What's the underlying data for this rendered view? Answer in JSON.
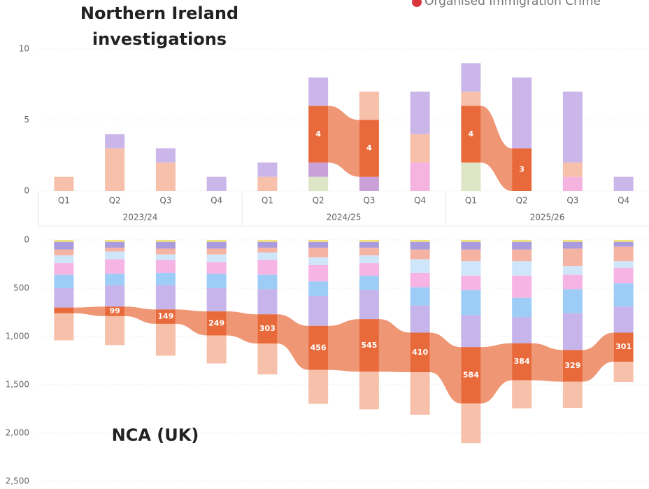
{
  "chart_data": [
    {
      "type": "ribbon",
      "title": "Northern Ireland investigations",
      "categories": [
        "Q1",
        "Q2",
        "Q3",
        "Q4",
        "Q1",
        "Q2",
        "Q3",
        "Q4",
        "Q1",
        "Q2",
        "Q3",
        "Q4"
      ],
      "x_groups": [
        "2023/24",
        "2024/25",
        "2025/26"
      ],
      "ylim": [
        0,
        10
      ],
      "yticks": [
        0,
        5,
        10
      ],
      "grid": true,
      "legend": "top-right",
      "series": [
        {
          "color": "#dfe6c8",
          "values": [
            0,
            0,
            0,
            0,
            0,
            1,
            0,
            0,
            2,
            0,
            0,
            0
          ]
        },
        {
          "color": "#c9a0d8",
          "values": [
            0,
            0,
            0,
            0,
            0,
            1,
            1,
            0,
            0,
            0,
            0,
            0
          ]
        },
        {
          "color": "#f5b3e0",
          "values": [
            0,
            0,
            0,
            0,
            0,
            0,
            0,
            2,
            0,
            0,
            1,
            0
          ]
        },
        {
          "name": "Organised Immigration Crime",
          "color": "#e8693a",
          "highlight": true,
          "values": [
            0,
            0,
            0,
            0,
            0,
            4,
            4,
            0,
            4,
            3,
            0,
            0
          ]
        },
        {
          "color": "#f6c0aa",
          "values": [
            1,
            3,
            2,
            0,
            1,
            0,
            2,
            2,
            1,
            0,
            1,
            0
          ]
        },
        {
          "color": "#cbb6ea",
          "values": [
            0,
            1,
            1,
            1,
            1,
            2,
            0,
            3,
            2,
            5,
            5,
            1
          ]
        }
      ]
    },
    {
      "type": "ribbon",
      "title": "NCA (UK)",
      "inverted": true,
      "ylim": [
        0,
        2500
      ],
      "yticks": [
        0,
        500,
        {
          "value": 1000,
          "label": "1,000"
        },
        {
          "value": 1500,
          "label": "1,500"
        },
        {
          "value": 2000,
          "label": "2,000"
        },
        {
          "value": 2500,
          "label": "2,500"
        }
      ],
      "grid": true,
      "series": [
        {
          "color": "#f3e27a",
          "values": [
            20,
            20,
            20,
            20,
            20,
            20,
            20,
            20,
            20,
            20,
            20,
            20
          ]
        },
        {
          "color": "#a99bdc",
          "values": [
            80,
            60,
            70,
            70,
            60,
            60,
            60,
            80,
            80,
            80,
            70,
            50
          ]
        },
        {
          "color": "#f5b3a3",
          "values": [
            60,
            40,
            60,
            60,
            50,
            100,
            80,
            100,
            120,
            120,
            180,
            150
          ]
        },
        {
          "color": "#cfe6fa",
          "values": [
            80,
            80,
            60,
            80,
            80,
            80,
            80,
            140,
            150,
            150,
            90,
            70
          ]
        },
        {
          "color": "#f6b4e4",
          "values": [
            120,
            150,
            130,
            120,
            150,
            170,
            130,
            150,
            150,
            230,
            150,
            160
          ]
        },
        {
          "color": "#9dcdf6",
          "values": [
            140,
            120,
            130,
            150,
            150,
            150,
            150,
            190,
            260,
            200,
            250,
            240
          ]
        },
        {
          "color": "#c6b4ea",
          "values": [
            200,
            220,
            250,
            240,
            260,
            310,
            300,
            280,
            330,
            270,
            380,
            270
          ]
        },
        {
          "color": "#e8693a",
          "highlight": true,
          "values": [
            60,
            99,
            149,
            249,
            303,
            456,
            545,
            410,
            584,
            384,
            329,
            301
          ]
        },
        {
          "color": "#f6c0aa",
          "values": [
            280,
            300,
            330,
            290,
            320,
            350,
            390,
            440,
            410,
            290,
            270,
            210
          ]
        }
      ]
    }
  ]
}
